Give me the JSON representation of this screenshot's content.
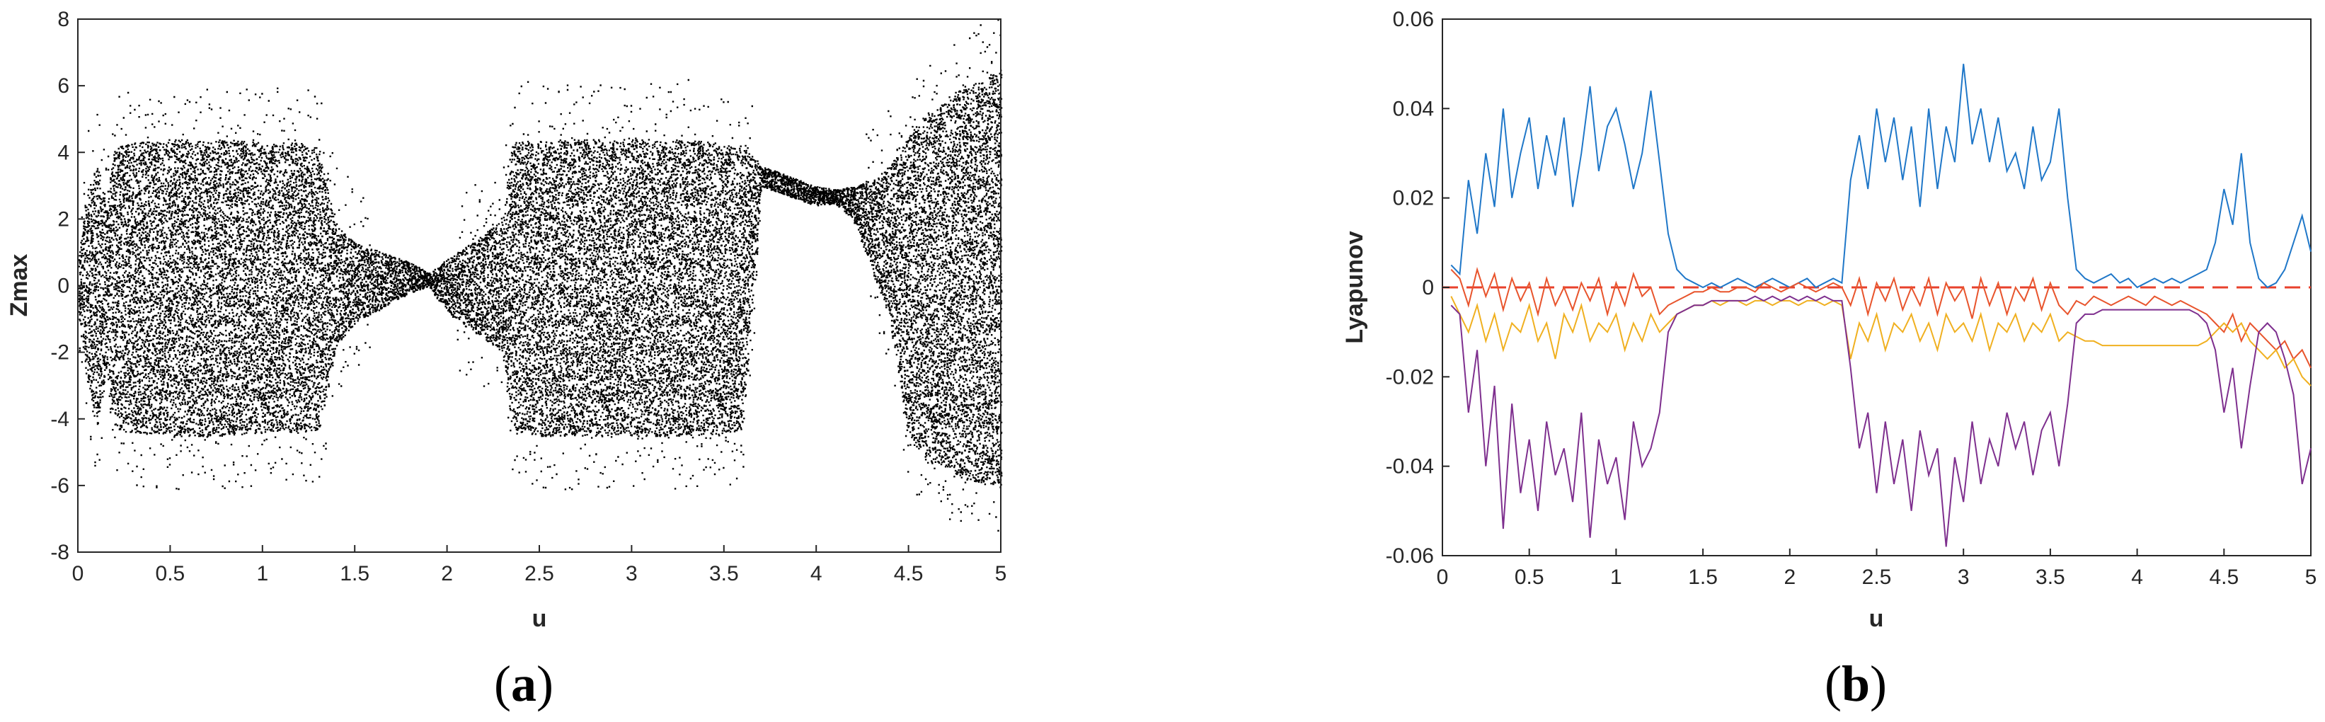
{
  "panels": [
    {
      "label": "(a)",
      "label_open": "(",
      "label_letter": "a",
      "label_close": ")"
    },
    {
      "label": "(b)",
      "label_open": "(",
      "label_letter": "b",
      "label_close": ")"
    }
  ],
  "chart_data": [
    {
      "type": "scatter",
      "title": "",
      "xlabel": "u",
      "ylabel": "Zmax",
      "xlim": [
        0,
        5
      ],
      "ylim": [
        -8,
        8
      ],
      "x_ticks": [
        0,
        0.5,
        1,
        1.5,
        2,
        2.5,
        3,
        3.5,
        4,
        4.5,
        5
      ],
      "x_tick_labels": [
        "0",
        "0.5",
        "1",
        "1.5",
        "2",
        "2.5",
        "3",
        "3.5",
        "4",
        "4.5",
        "5"
      ],
      "y_ticks": [
        -8,
        -6,
        -4,
        -2,
        0,
        2,
        4,
        6,
        8
      ],
      "y_tick_labels": [
        "-8",
        "-6",
        "-4",
        "-2",
        "0",
        "2",
        "4",
        "6",
        "8"
      ],
      "grid": false,
      "marker_color": "#000000",
      "envelope": {
        "description_free": true,
        "u": [
          0.0,
          0.05,
          0.1,
          0.15,
          0.2,
          0.3,
          0.5,
          0.8,
          1.0,
          1.2,
          1.3,
          1.4,
          1.5,
          1.6,
          1.7,
          1.8,
          1.9,
          2.0,
          2.1,
          2.2,
          2.3,
          2.35,
          2.5,
          3.0,
          3.3,
          3.6,
          3.7,
          3.8,
          3.9,
          4.0,
          4.1,
          4.2,
          4.3,
          4.4,
          4.5,
          4.6,
          4.8,
          5.0
        ],
        "upper": [
          0.8,
          2.8,
          3.8,
          2.5,
          4.2,
          4.3,
          4.4,
          4.4,
          4.3,
          4.3,
          4.2,
          1.8,
          1.3,
          1.1,
          0.9,
          0.7,
          0.4,
          0.8,
          1.2,
          1.6,
          2.0,
          4.3,
          4.4,
          4.4,
          4.4,
          4.2,
          3.6,
          3.4,
          3.2,
          3.0,
          2.9,
          3.0,
          3.2,
          3.6,
          4.5,
          5.2,
          6.0,
          6.5
        ],
        "lower": [
          -0.8,
          -2.8,
          -4.2,
          -2.5,
          -4.3,
          -4.4,
          -4.5,
          -4.5,
          -4.4,
          -4.4,
          -4.3,
          -1.8,
          -1.1,
          -0.8,
          -0.5,
          -0.2,
          0.0,
          -0.8,
          -1.2,
          -1.6,
          -2.0,
          -4.3,
          -4.5,
          -4.5,
          -4.5,
          -4.4,
          3.0,
          2.8,
          2.6,
          2.4,
          2.5,
          2.0,
          0.5,
          -1.0,
          -4.6,
          -5.2,
          -5.8,
          -6.0
        ]
      }
    },
    {
      "type": "line",
      "title": "",
      "xlabel": "u",
      "ylabel": "Lyapunov",
      "xlim": [
        0,
        5
      ],
      "ylim": [
        -0.06,
        0.06
      ],
      "x_ticks": [
        0,
        0.5,
        1,
        1.5,
        2,
        2.5,
        3,
        3.5,
        4,
        4.5,
        5
      ],
      "x_tick_labels": [
        "0",
        "0.5",
        "1",
        "1.5",
        "2",
        "2.5",
        "3",
        "3.5",
        "4",
        "4.5",
        "5"
      ],
      "y_ticks": [
        -0.06,
        -0.04,
        -0.02,
        0,
        0.02,
        0.04,
        0.06
      ],
      "y_tick_labels": [
        "-0.06",
        "-0.04",
        "-0.02",
        "0",
        "0.02",
        "0.04",
        "0.06"
      ],
      "grid": false,
      "reference_line": {
        "y": 0,
        "color": "#e8412c",
        "style": "dashed"
      },
      "x": [
        0.05,
        0.1,
        0.15,
        0.2,
        0.25,
        0.3,
        0.35,
        0.4,
        0.45,
        0.5,
        0.55,
        0.6,
        0.65,
        0.7,
        0.75,
        0.8,
        0.85,
        0.9,
        0.95,
        1.0,
        1.05,
        1.1,
        1.15,
        1.2,
        1.25,
        1.3,
        1.35,
        1.4,
        1.45,
        1.5,
        1.55,
        1.6,
        1.65,
        1.7,
        1.75,
        1.8,
        1.85,
        1.9,
        1.95,
        2.0,
        2.05,
        2.1,
        2.15,
        2.2,
        2.25,
        2.3,
        2.35,
        2.4,
        2.45,
        2.5,
        2.55,
        2.6,
        2.65,
        2.7,
        2.75,
        2.8,
        2.85,
        2.9,
        2.95,
        3.0,
        3.05,
        3.1,
        3.15,
        3.2,
        3.25,
        3.3,
        3.35,
        3.4,
        3.45,
        3.5,
        3.55,
        3.6,
        3.65,
        3.7,
        3.75,
        3.8,
        3.85,
        3.9,
        3.95,
        4.0,
        4.05,
        4.1,
        4.15,
        4.2,
        4.25,
        4.3,
        4.35,
        4.4,
        4.45,
        4.5,
        4.55,
        4.6,
        4.65,
        4.7,
        4.75,
        4.8,
        4.85,
        4.9,
        4.95,
        5.0
      ],
      "series": [
        {
          "color": "#1f77c8",
          "values": [
            0.005,
            0.003,
            0.024,
            0.012,
            0.03,
            0.018,
            0.04,
            0.02,
            0.03,
            0.038,
            0.022,
            0.034,
            0.025,
            0.038,
            0.018,
            0.03,
            0.045,
            0.026,
            0.036,
            0.04,
            0.032,
            0.022,
            0.03,
            0.044,
            0.028,
            0.012,
            0.004,
            0.002,
            0.001,
            0.0,
            0.001,
            0.0,
            0.001,
            0.002,
            0.001,
            0.0,
            0.001,
            0.002,
            0.001,
            0.0,
            0.001,
            0.002,
            0.0,
            0.001,
            0.002,
            0.001,
            0.024,
            0.034,
            0.022,
            0.04,
            0.028,
            0.038,
            0.024,
            0.036,
            0.018,
            0.04,
            0.022,
            0.036,
            0.028,
            0.05,
            0.032,
            0.04,
            0.028,
            0.038,
            0.026,
            0.03,
            0.022,
            0.036,
            0.024,
            0.028,
            0.04,
            0.02,
            0.004,
            0.002,
            0.001,
            0.002,
            0.003,
            0.001,
            0.002,
            0.0,
            0.001,
            0.002,
            0.001,
            0.002,
            0.001,
            0.002,
            0.003,
            0.004,
            0.01,
            0.022,
            0.014,
            0.03,
            0.01,
            0.002,
            0.0,
            0.001,
            0.004,
            0.01,
            0.016,
            0.008
          ]
        },
        {
          "color": "#e8542c",
          "values": [
            0.004,
            0.002,
            -0.004,
            0.004,
            -0.002,
            0.003,
            -0.005,
            0.002,
            -0.003,
            0.001,
            -0.006,
            0.002,
            -0.004,
            0.0,
            -0.005,
            0.001,
            -0.003,
            0.002,
            -0.006,
            0.001,
            -0.004,
            0.003,
            -0.002,
            0.0,
            -0.006,
            -0.004,
            -0.003,
            -0.002,
            -0.001,
            -0.001,
            0.0,
            -0.001,
            -0.001,
            0.0,
            0.0,
            -0.001,
            0.001,
            0.0,
            -0.001,
            0.0,
            0.001,
            0.0,
            -0.001,
            0.0,
            0.001,
            0.0,
            -0.004,
            0.002,
            -0.006,
            0.001,
            -0.003,
            0.002,
            -0.005,
            0.0,
            -0.004,
            0.002,
            -0.006,
            0.001,
            -0.003,
            0.0,
            -0.007,
            0.002,
            -0.004,
            0.001,
            -0.006,
            0.0,
            -0.003,
            0.002,
            -0.005,
            0.001,
            -0.004,
            -0.006,
            -0.003,
            -0.004,
            -0.002,
            -0.003,
            -0.004,
            -0.003,
            -0.002,
            -0.003,
            -0.004,
            -0.002,
            -0.003,
            -0.004,
            -0.003,
            -0.004,
            -0.005,
            -0.006,
            -0.008,
            -0.01,
            -0.006,
            -0.012,
            -0.008,
            -0.01,
            -0.012,
            -0.014,
            -0.012,
            -0.016,
            -0.014,
            -0.018
          ]
        },
        {
          "color": "#f0b020",
          "values": [
            -0.002,
            -0.006,
            -0.01,
            -0.004,
            -0.012,
            -0.006,
            -0.014,
            -0.008,
            -0.01,
            -0.004,
            -0.012,
            -0.008,
            -0.016,
            -0.006,
            -0.01,
            -0.004,
            -0.012,
            -0.008,
            -0.01,
            -0.006,
            -0.014,
            -0.008,
            -0.012,
            -0.006,
            -0.01,
            -0.008,
            -0.006,
            -0.005,
            -0.004,
            -0.004,
            -0.003,
            -0.004,
            -0.003,
            -0.003,
            -0.004,
            -0.003,
            -0.003,
            -0.004,
            -0.003,
            -0.003,
            -0.004,
            -0.003,
            -0.003,
            -0.004,
            -0.003,
            -0.004,
            -0.016,
            -0.008,
            -0.012,
            -0.006,
            -0.014,
            -0.008,
            -0.01,
            -0.006,
            -0.012,
            -0.008,
            -0.014,
            -0.006,
            -0.01,
            -0.008,
            -0.012,
            -0.006,
            -0.014,
            -0.008,
            -0.01,
            -0.006,
            -0.012,
            -0.008,
            -0.01,
            -0.006,
            -0.012,
            -0.01,
            -0.011,
            -0.012,
            -0.012,
            -0.013,
            -0.013,
            -0.013,
            -0.013,
            -0.013,
            -0.013,
            -0.013,
            -0.013,
            -0.013,
            -0.013,
            -0.013,
            -0.013,
            -0.012,
            -0.01,
            -0.008,
            -0.01,
            -0.008,
            -0.012,
            -0.014,
            -0.016,
            -0.014,
            -0.018,
            -0.016,
            -0.02,
            -0.022
          ]
        },
        {
          "color": "#7e2f8e",
          "values": [
            -0.004,
            -0.006,
            -0.028,
            -0.014,
            -0.04,
            -0.022,
            -0.054,
            -0.026,
            -0.046,
            -0.034,
            -0.05,
            -0.03,
            -0.042,
            -0.036,
            -0.048,
            -0.028,
            -0.056,
            -0.034,
            -0.044,
            -0.038,
            -0.052,
            -0.03,
            -0.04,
            -0.036,
            -0.028,
            -0.01,
            -0.006,
            -0.005,
            -0.004,
            -0.004,
            -0.003,
            -0.003,
            -0.003,
            -0.003,
            -0.003,
            -0.002,
            -0.003,
            -0.002,
            -0.003,
            -0.002,
            -0.003,
            -0.002,
            -0.003,
            -0.002,
            -0.003,
            -0.003,
            -0.018,
            -0.036,
            -0.028,
            -0.046,
            -0.03,
            -0.044,
            -0.034,
            -0.05,
            -0.032,
            -0.042,
            -0.036,
            -0.058,
            -0.038,
            -0.048,
            -0.03,
            -0.044,
            -0.034,
            -0.04,
            -0.028,
            -0.036,
            -0.03,
            -0.042,
            -0.032,
            -0.028,
            -0.04,
            -0.026,
            -0.008,
            -0.006,
            -0.006,
            -0.005,
            -0.005,
            -0.005,
            -0.005,
            -0.005,
            -0.005,
            -0.005,
            -0.005,
            -0.005,
            -0.005,
            -0.005,
            -0.006,
            -0.008,
            -0.014,
            -0.028,
            -0.018,
            -0.036,
            -0.022,
            -0.01,
            -0.008,
            -0.01,
            -0.016,
            -0.024,
            -0.044,
            -0.036
          ]
        }
      ]
    }
  ]
}
